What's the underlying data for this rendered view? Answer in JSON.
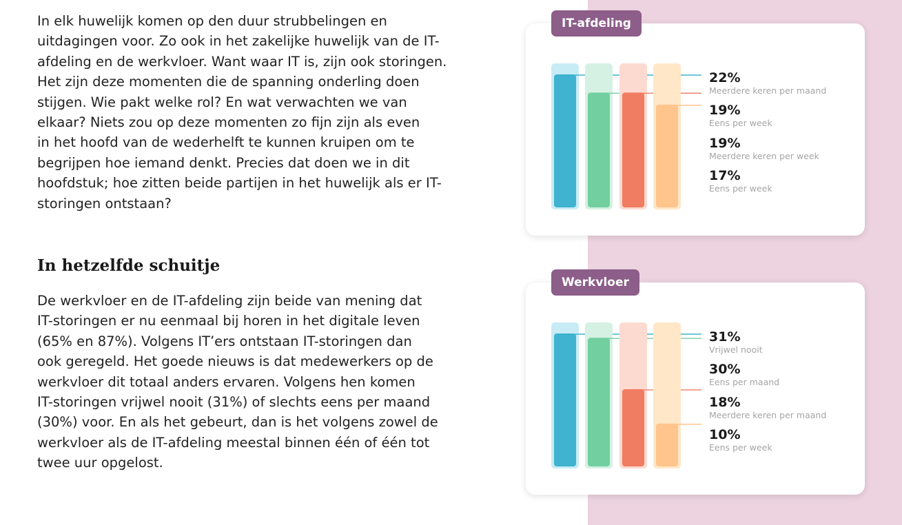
{
  "intro": {
    "text": "In elk huwelijk komen op den duur strubbelingen en\nuitdagingen voor. Zo ook in het zakelijke huwelijk van de IT-\nafdeling en de werkvloer. Want waar IT is, zijn ook storingen.\nHet zijn deze momenten die de spanning onderling doen\nstijgen. Wie pakt welke rol? En wat verwachten we van\nelkaar? Niets zou op deze momenten zo fijn zijn als even\nin het hoofd van de wederhelft te kunnen kruipen om te\nbegrijpen hoe iemand denkt. Precies dat doen we in dit\nhoofdstuk; hoe zitten beide partijen in het huwelijk als er IT-\nstoringen ontstaan?"
  },
  "section": {
    "heading": "In hetzelfde schuitje",
    "text": "De werkvloer en de IT-afdeling zijn beide van mening dat\nIT-storingen er nu eenmaal bij horen in het digitale leven\n(65% en 87%).  Volgens IT’ers ontstaan IT-storingen dan\nook geregeld. Het goede nieuws is dat medewerkers op de\nwerkvloer dit totaal anders ervaren. Volgens hen komen\nIT-storingen vrijwel nooit (31%) of slechts eens per maand\n(30%) voor. En als het gebeurt, dan is het volgens zowel de\nwerkvloer als de IT-afdeling meestal binnen één of één tot\ntwee uur opgelost."
  },
  "colors": {
    "bars": [
      "#3fb3cf",
      "#72cfa0",
      "#f07c61",
      "#ffc58d"
    ],
    "tracks": [
      "#c8ecf5",
      "#d5f1e3",
      "#fcdad0",
      "#ffe7c8"
    ],
    "badge": "#8c5e89",
    "panel_bg": "#ecd3df"
  },
  "chart_data": [
    {
      "type": "bar",
      "badge": "IT-afdeling",
      "ylim": [
        0,
        22
      ],
      "values": [
        22,
        19,
        19,
        17
      ],
      "labels": [
        "22%",
        "19%",
        "19%",
        "17%"
      ],
      "categories": [
        "Meerdere keren per maand",
        "Eens per week",
        "Meerdere keren per week",
        "Eens per week"
      ]
    },
    {
      "type": "bar",
      "badge": "Werkvloer",
      "ylim": [
        0,
        31
      ],
      "values": [
        31,
        30,
        18,
        10
      ],
      "labels": [
        "31%",
        "30%",
        "18%",
        "10%"
      ],
      "categories": [
        "Vrijwel nooit",
        "Eens per maand",
        "Meerdere keren per maand",
        "Eens per week"
      ]
    }
  ]
}
